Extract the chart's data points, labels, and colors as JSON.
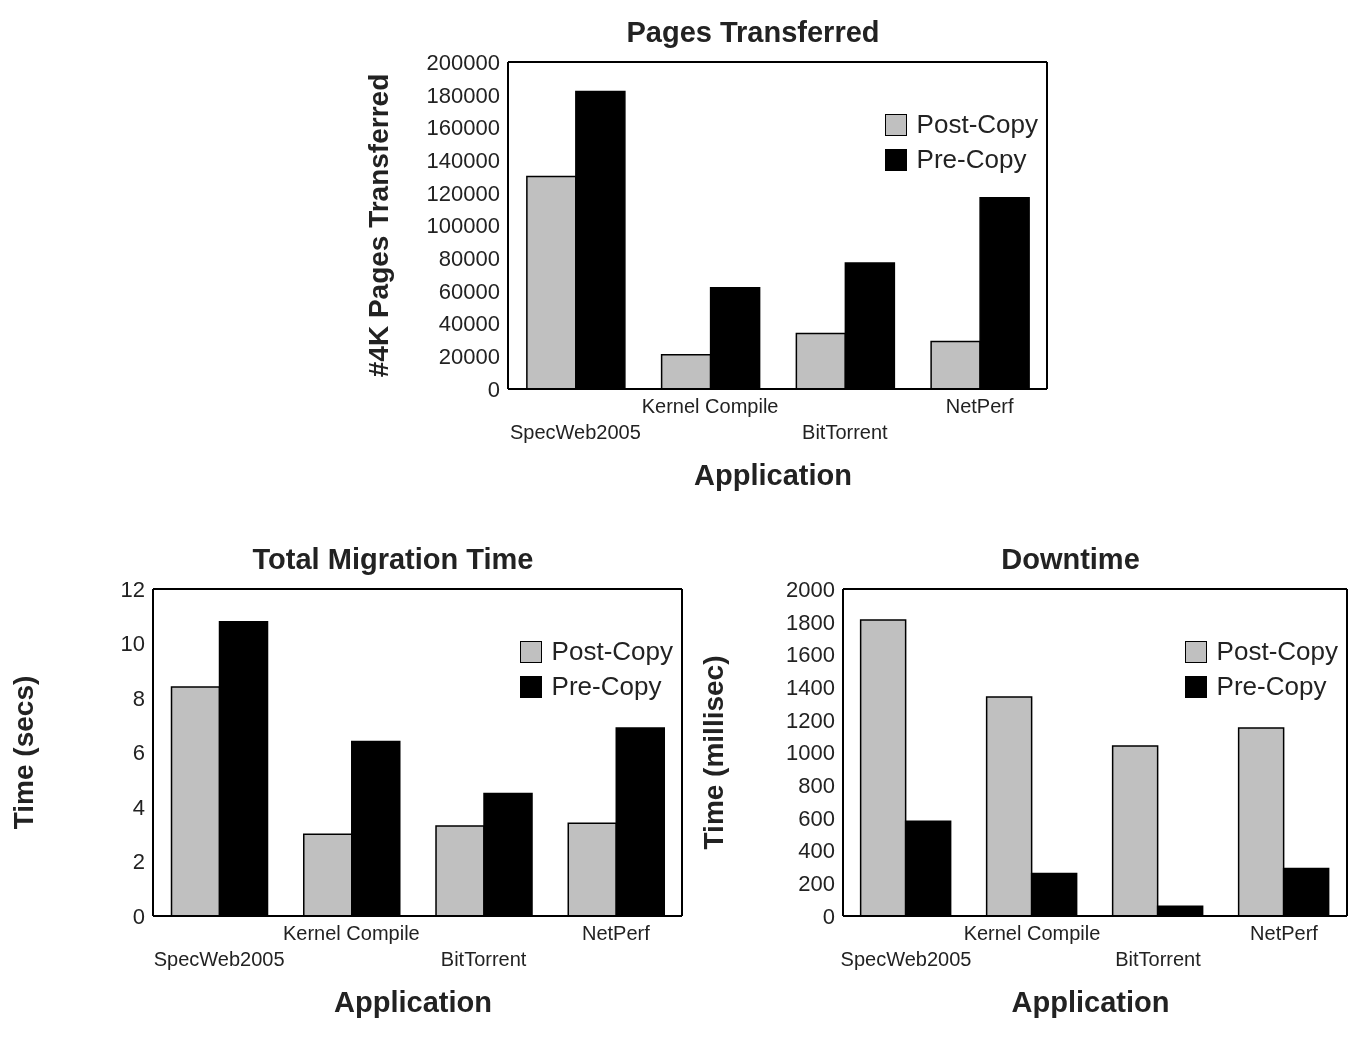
{
  "chart_data": [
    {
      "type": "bar",
      "title": "Pages Transferred",
      "xlabel": "Application",
      "ylabel": "#4K Pages Transferred",
      "categories": [
        "SpecWeb2005",
        "Kernel Compile",
        "BitTorrent",
        "NetPerf"
      ],
      "series": [
        {
          "name": "Post-Copy",
          "color": "#c0c0c0",
          "values": [
            130000,
            21000,
            34000,
            29000
          ]
        },
        {
          "name": "Pre-Copy",
          "color": "#000000",
          "values": [
            182000,
            62000,
            77000,
            117000
          ]
        }
      ],
      "ylim": [
        0,
        200000
      ],
      "yticks": [
        0,
        20000,
        40000,
        60000,
        80000,
        100000,
        120000,
        140000,
        160000,
        180000,
        200000
      ],
      "grid": false,
      "legend": "top right"
    },
    {
      "type": "bar",
      "title": "Total Migration Time",
      "xlabel": "Application",
      "ylabel": "Time (secs)",
      "categories": [
        "SpecWeb2005",
        "Kernel Compile",
        "BitTorrent",
        "NetPerf"
      ],
      "series": [
        {
          "name": "Post-Copy",
          "color": "#c0c0c0",
          "values": [
            8.4,
            3.0,
            3.3,
            3.4
          ]
        },
        {
          "name": "Pre-Copy",
          "color": "#000000",
          "values": [
            10.8,
            6.4,
            4.5,
            6.9
          ]
        }
      ],
      "ylim": [
        0,
        12
      ],
      "yticks": [
        0,
        2,
        4,
        6,
        8,
        10,
        12
      ],
      "grid": false,
      "legend": "top right"
    },
    {
      "type": "bar",
      "title": "Downtime",
      "xlabel": "Application",
      "ylabel": "Time (millisec)",
      "categories": [
        "SpecWeb2005",
        "Kernel Compile",
        "BitTorrent",
        "NetPerf"
      ],
      "series": [
        {
          "name": "Post-Copy",
          "color": "#c0c0c0",
          "values": [
            1810,
            1340,
            1040,
            1150
          ]
        },
        {
          "name": "Pre-Copy",
          "color": "#000000",
          "values": [
            580,
            260,
            60,
            290
          ]
        }
      ],
      "ylim": [
        0,
        2000
      ],
      "yticks": [
        0,
        200,
        400,
        600,
        800,
        1000,
        1200,
        1400,
        1600,
        1800,
        2000
      ],
      "grid": false,
      "legend": "top right"
    }
  ]
}
